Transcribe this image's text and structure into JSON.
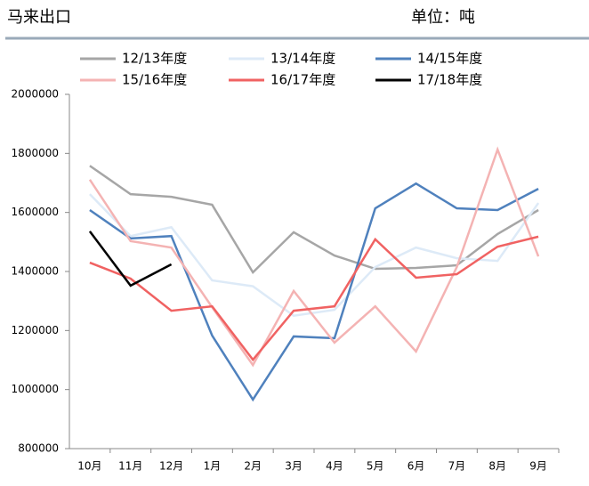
{
  "chart_data": {
    "type": "line",
    "title": "马来出口",
    "unit": "单位：吨",
    "categories": [
      "10月",
      "11月",
      "12月",
      "1月",
      "2月",
      "3月",
      "4月",
      "5月",
      "6月",
      "7月",
      "8月",
      "9月"
    ],
    "series": [
      {
        "name": "12/13年度",
        "color": "#a6a6a6",
        "values": [
          1758000,
          1662000,
          1653000,
          1626000,
          1397000,
          1533000,
          1454000,
          1409000,
          1412000,
          1421000,
          1527000,
          1608000
        ]
      },
      {
        "name": "13/14年度",
        "color": "#ddeaf7",
        "values": [
          1662000,
          1520000,
          1550000,
          1370000,
          1350000,
          1250000,
          1270000,
          1415000,
          1481000,
          1445000,
          1436000,
          1632000
        ]
      },
      {
        "name": "14/15年度",
        "color": "#4f81bd",
        "values": [
          1608000,
          1512000,
          1520000,
          1183000,
          966000,
          1180000,
          1174000,
          1614000,
          1698000,
          1614000,
          1608000,
          1680000
        ]
      },
      {
        "name": "15/16年度",
        "color": "#f4b3b3",
        "values": [
          1711000,
          1503000,
          1481000,
          1279000,
          1083000,
          1334000,
          1159000,
          1282000,
          1129000,
          1415000,
          1813000,
          1451000
        ]
      },
      {
        "name": "16/17年度",
        "color": "#f06262",
        "values": [
          1430000,
          1376000,
          1267000,
          1282000,
          1101000,
          1267000,
          1282000,
          1509000,
          1379000,
          1391000,
          1484000,
          1518000
        ]
      },
      {
        "name": "17/18年度",
        "color": "#000000",
        "values": [
          1536000,
          1352000,
          1424000,
          null,
          null,
          null,
          null,
          null,
          null,
          null,
          null,
          null
        ]
      }
    ],
    "ylim": [
      800000,
      2000000
    ],
    "yticks": [
      800000,
      1000000,
      1200000,
      1400000,
      1600000,
      1800000,
      2000000
    ],
    "grid": false
  }
}
